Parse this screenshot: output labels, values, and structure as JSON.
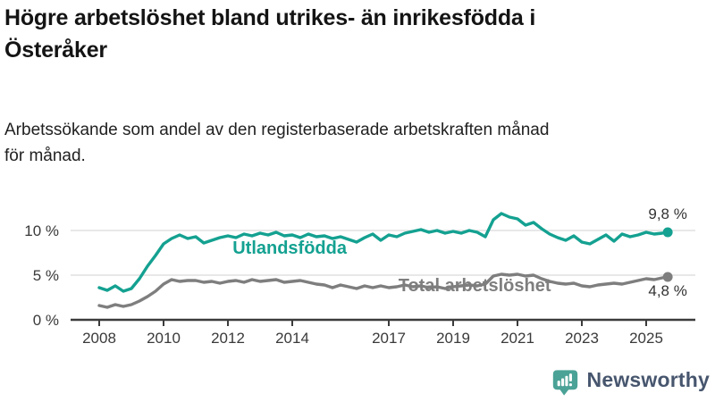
{
  "header": {
    "title": "Högre arbetslöshet bland utrikes- än inrikesfödda i\nÖsteråker",
    "subtitle": "Arbetssökande som andel av den registerbaserade arbetskraften månad\nför månad."
  },
  "chart_data": {
    "type": "line",
    "title": "Högre arbetslöshet bland utrikes- än inrikesfödda i Österåker",
    "subtitle": "Arbetssökande som andel av den registerbaserade arbetskraften månad för månad.",
    "unit": "%",
    "grid": "horizontal-only",
    "legend_position": "inline-labels",
    "ylim": [
      0,
      13
    ],
    "xlim": [
      2007.1,
      2026.5
    ],
    "x_start": 2008.0,
    "x_step": 0.25,
    "x_end": 2025.67,
    "x_axis": {
      "ticks": [
        2008,
        2010,
        2012,
        2014,
        2017,
        2019,
        2021,
        2023,
        2025
      ]
    },
    "y_axis": {
      "ticks": [
        {
          "value": 0,
          "label": "0 %"
        },
        {
          "value": 5,
          "label": "5 %"
        },
        {
          "value": 10,
          "label": "10 %"
        }
      ]
    },
    "series": [
      {
        "id": "utlandsfodda",
        "name": "Utlandsfödda",
        "color": "#14a191",
        "end_label": "9,8 %",
        "end_label_dy": -15,
        "label_pos": {
          "x": 2013.92,
          "value": 7.4
        },
        "values": [
          3.6,
          3.3,
          3.8,
          3.2,
          3.5,
          4.6,
          6.0,
          7.2,
          8.5,
          9.1,
          9.5,
          9.1,
          9.3,
          8.6,
          8.9,
          9.2,
          9.4,
          9.2,
          9.6,
          9.4,
          9.7,
          9.5,
          9.8,
          9.4,
          9.5,
          9.2,
          9.6,
          9.3,
          9.4,
          9.1,
          9.3,
          9.0,
          8.7,
          9.2,
          9.6,
          8.9,
          9.5,
          9.3,
          9.7,
          9.9,
          10.1,
          9.8,
          10.0,
          9.7,
          9.9,
          9.7,
          10.0,
          9.8,
          9.3,
          11.2,
          11.9,
          11.5,
          11.3,
          10.6,
          10.9,
          10.2,
          9.6,
          9.2,
          8.9,
          9.4,
          8.7,
          8.5,
          9.0,
          9.5,
          8.8,
          9.6,
          9.3,
          9.5,
          9.8,
          9.6,
          9.7,
          9.8
        ]
      },
      {
        "id": "total-arbetsloshet",
        "name": "Total arbetslöshet",
        "color": "#7e7e7e",
        "end_label": "4,8 %",
        "end_label_dy": 21,
        "label_pos": {
          "x": 2019.67,
          "value": 3.2
        },
        "values": [
          1.6,
          1.4,
          1.7,
          1.5,
          1.7,
          2.1,
          2.6,
          3.2,
          4.0,
          4.5,
          4.3,
          4.4,
          4.4,
          4.2,
          4.3,
          4.1,
          4.3,
          4.4,
          4.2,
          4.5,
          4.3,
          4.4,
          4.5,
          4.2,
          4.3,
          4.4,
          4.2,
          4.0,
          3.9,
          3.6,
          3.9,
          3.7,
          3.5,
          3.8,
          3.6,
          3.8,
          3.6,
          3.7,
          3.9,
          3.7,
          3.8,
          3.6,
          3.7,
          3.5,
          3.7,
          3.8,
          3.9,
          3.8,
          4.0,
          4.9,
          5.1,
          5.0,
          5.1,
          4.9,
          5.0,
          4.6,
          4.3,
          4.1,
          4.0,
          4.1,
          3.8,
          3.7,
          3.9,
          4.0,
          4.1,
          4.0,
          4.2,
          4.4,
          4.6,
          4.5,
          4.7,
          4.8
        ]
      }
    ]
  },
  "branding": {
    "name": "Newsworthy",
    "icon": "newsworthy-chart-bubble-icon",
    "icon_color": "#4ba296",
    "text_color": "#47566e"
  }
}
